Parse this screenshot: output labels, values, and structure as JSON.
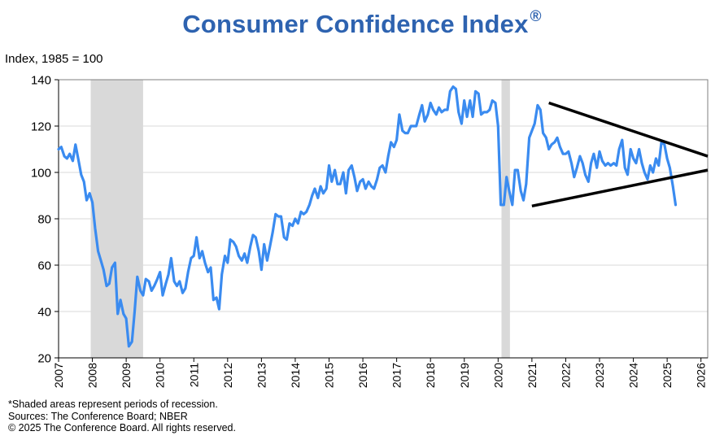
{
  "title": "Consumer Confidence Index",
  "title_mark": "®",
  "notes": [
    "*Shaded areas represent periods of recession.",
    "Sources: The Conference Board;  NBER",
    "© 2025 The Conference Board. All rights reserved."
  ],
  "chart_data": {
    "type": "line",
    "ylabel": "Index, 1985 = 100",
    "xlabel": "",
    "ylim": [
      20,
      140
    ],
    "yticks": [
      20,
      40,
      60,
      80,
      100,
      120,
      140
    ],
    "xlim": [
      2007,
      2026.2
    ],
    "xticks": [
      "2007",
      "2008",
      "2009",
      "2010",
      "2011",
      "2012",
      "2013",
      "2014",
      "2015",
      "2016",
      "2017",
      "2018",
      "2019",
      "2020",
      "2021",
      "2022",
      "2023",
      "2024",
      "2025",
      "2026"
    ],
    "grid": "horizontal",
    "line_color": "#3A8BF0",
    "recession_color": "#D9D9D9",
    "trend_color": "#000000",
    "recessions": [
      [
        2007.95,
        2009.5
      ],
      [
        2020.1,
        2020.35
      ]
    ],
    "trendlines": [
      {
        "from": [
          2021.5,
          130
        ],
        "to": [
          2026.2,
          107
        ]
      },
      {
        "from": [
          2021.0,
          85.5
        ],
        "to": [
          2026.2,
          101
        ]
      }
    ],
    "series": [
      {
        "x": [
          2007.0,
          2007.08,
          2007.17,
          2007.25,
          2007.33,
          2007.42,
          2007.5,
          2007.58,
          2007.67,
          2007.75,
          2007.83,
          2007.92,
          2008.0,
          2008.08,
          2008.17,
          2008.25,
          2008.33,
          2008.42,
          2008.5,
          2008.58,
          2008.67,
          2008.75,
          2008.83,
          2008.92,
          2009.0,
          2009.08,
          2009.17,
          2009.25,
          2009.33,
          2009.42,
          2009.5,
          2009.58,
          2009.67,
          2009.75,
          2009.83,
          2009.92,
          2010.0,
          2010.08,
          2010.17,
          2010.25,
          2010.33,
          2010.42,
          2010.5,
          2010.58,
          2010.67,
          2010.75,
          2010.83,
          2010.92,
          2011.0,
          2011.08,
          2011.17,
          2011.25,
          2011.33,
          2011.42,
          2011.5,
          2011.58,
          2011.67,
          2011.75,
          2011.83,
          2011.92,
          2012.0,
          2012.08,
          2012.17,
          2012.25,
          2012.33,
          2012.42,
          2012.5,
          2012.58,
          2012.67,
          2012.75,
          2012.83,
          2012.92,
          2013.0,
          2013.08,
          2013.17,
          2013.25,
          2013.33,
          2013.42,
          2013.5,
          2013.58,
          2013.67,
          2013.75,
          2013.83,
          2013.92,
          2014.0,
          2014.08,
          2014.17,
          2014.25,
          2014.33,
          2014.42,
          2014.5,
          2014.58,
          2014.67,
          2014.75,
          2014.83,
          2014.92,
          2015.0,
          2015.08,
          2015.17,
          2015.25,
          2015.33,
          2015.42,
          2015.5,
          2015.58,
          2015.67,
          2015.75,
          2015.83,
          2015.92,
          2016.0,
          2016.08,
          2016.17,
          2016.25,
          2016.33,
          2016.42,
          2016.5,
          2016.58,
          2016.67,
          2016.75,
          2016.83,
          2016.92,
          2017.0,
          2017.08,
          2017.17,
          2017.25,
          2017.33,
          2017.42,
          2017.5,
          2017.58,
          2017.67,
          2017.75,
          2017.83,
          2017.92,
          2018.0,
          2018.08,
          2018.17,
          2018.25,
          2018.33,
          2018.42,
          2018.5,
          2018.58,
          2018.67,
          2018.75,
          2018.83,
          2018.92,
          2019.0,
          2019.08,
          2019.17,
          2019.25,
          2019.33,
          2019.42,
          2019.5,
          2019.58,
          2019.67,
          2019.75,
          2019.83,
          2019.92,
          2020.0,
          2020.08,
          2020.17,
          2020.25,
          2020.33,
          2020.42,
          2020.5,
          2020.58,
          2020.67,
          2020.75,
          2020.83,
          2020.92,
          2021.0,
          2021.08,
          2021.17,
          2021.25,
          2021.33,
          2021.42,
          2021.5,
          2021.58,
          2021.67,
          2021.75,
          2021.83,
          2021.92,
          2022.0,
          2022.08,
          2022.17,
          2022.25,
          2022.33,
          2022.42,
          2022.5,
          2022.58,
          2022.67,
          2022.75,
          2022.83,
          2022.92,
          2023.0,
          2023.08,
          2023.17,
          2023.25,
          2023.33,
          2023.42,
          2023.5,
          2023.58,
          2023.67,
          2023.75,
          2023.83,
          2023.92,
          2024.0,
          2024.08,
          2024.17,
          2024.25,
          2024.33,
          2024.42,
          2024.5,
          2024.58,
          2024.67,
          2024.75,
          2024.83,
          2024.92,
          2025.0,
          2025.08,
          2025.17,
          2025.25
        ],
        "values": [
          110,
          111,
          107,
          106,
          108,
          105,
          112,
          106,
          99,
          96,
          88,
          91,
          87,
          76,
          66,
          62,
          58,
          51,
          52,
          59,
          61,
          39,
          45,
          39,
          37,
          25,
          27,
          40,
          55,
          49,
          47,
          54,
          53,
          49,
          51,
          54,
          57,
          47,
          52,
          56,
          63,
          53,
          51,
          53,
          48,
          50,
          57,
          63,
          64,
          72,
          63,
          66,
          61,
          57,
          59,
          45,
          46,
          41,
          56,
          64,
          61,
          71,
          70,
          68,
          64,
          62,
          65,
          61,
          68,
          73,
          72,
          66,
          58,
          69,
          62,
          68,
          74,
          82,
          81,
          81,
          72,
          71,
          78,
          77,
          80,
          78,
          83,
          82,
          83,
          86,
          90,
          93,
          89,
          94,
          91,
          93,
          103,
          96,
          101,
          95,
          95,
          100,
          91,
          101,
          103,
          98,
          92,
          96,
          97,
          93,
          96,
          94,
          93,
          97,
          102,
          103,
          100,
          107,
          113,
          111,
          114,
          125,
          118,
          117,
          117,
          120,
          120,
          120,
          125,
          129,
          122,
          125,
          130,
          127,
          125,
          128,
          126,
          127,
          127,
          135,
          137,
          136,
          126,
          121,
          131,
          124,
          131,
          124,
          135,
          134,
          125,
          126,
          126,
          127,
          131,
          130,
          120,
          86,
          86,
          98,
          92,
          86,
          101,
          101,
          92,
          88,
          95,
          115,
          118,
          121,
          129,
          127,
          117,
          115,
          110,
          112,
          113,
          115,
          111,
          108,
          108,
          109,
          104,
          98,
          102,
          107,
          104,
          99,
          96,
          104,
          108,
          102,
          109,
          105,
          103,
          104,
          103,
          104,
          103,
          110,
          114,
          102,
          99,
          110,
          106,
          104,
          110,
          104,
          100,
          97,
          103,
          100,
          106,
          103,
          113,
          112,
          106,
          102,
          94,
          86
        ]
      }
    ]
  }
}
